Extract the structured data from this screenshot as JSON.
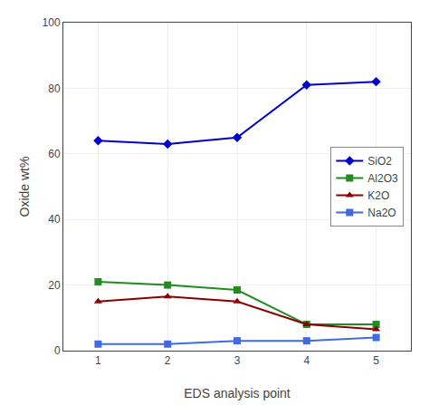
{
  "chart_data": {
    "type": "line",
    "x": [
      1,
      2,
      3,
      4,
      5
    ],
    "series": [
      {
        "name": "SiO2",
        "color": "#0000CD",
        "marker": "diamond",
        "values": [
          64,
          63,
          65,
          81,
          82
        ]
      },
      {
        "name": "Al2O3",
        "color": "#228B22",
        "marker": "square",
        "values": [
          21,
          20,
          18.5,
          8,
          8
        ]
      },
      {
        "name": "K2O",
        "color": "#8B0000",
        "marker": "triangle-up",
        "values": [
          15,
          16.5,
          15,
          8,
          6.5
        ]
      },
      {
        "name": "Na2O",
        "color": "#4169E1",
        "marker": "square",
        "values": [
          2,
          2,
          3,
          3,
          4
        ]
      }
    ],
    "xlabel": "EDS analysis point",
    "ylabel": "Oxide wt%",
    "xlim": [
      0.5,
      5.5
    ],
    "ylim": [
      0,
      100
    ],
    "xticks": [
      1,
      2,
      3,
      4,
      5
    ],
    "yticks": [
      0,
      20,
      40,
      60,
      80,
      100
    ],
    "grid": true,
    "legend": "center right"
  }
}
